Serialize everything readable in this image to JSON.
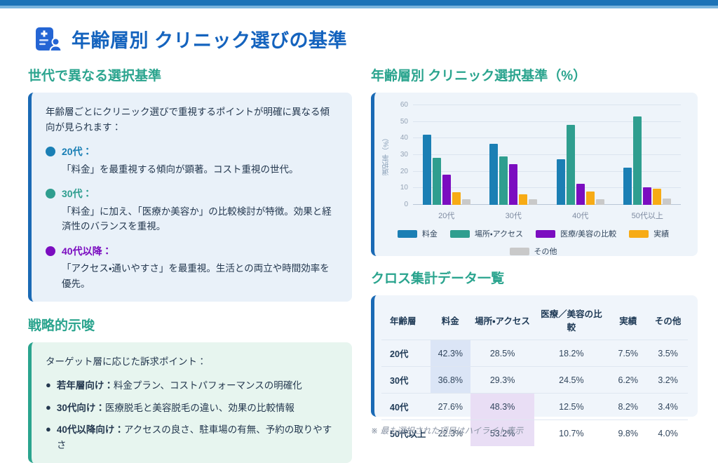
{
  "header": {
    "title": "年齢層別 クリニック選びの基準",
    "icon": "person-card-icon",
    "title_color": "#1463be"
  },
  "accent": {
    "top_bar": "#1c73b7",
    "top_bar_light": "#79b4dd",
    "heading_teal": "#2aa48e"
  },
  "left": {
    "criteria": {
      "heading": "世代で異なる選択基準",
      "intro": "年齢層ごとにクリニック選びで重視するポイントが明確に異なる傾向が見られます：",
      "items": [
        {
          "label": "20代：",
          "color": "#1a7fb5",
          "desc": "「料金」を最重視する傾向が顕著。コスト重視の世代。"
        },
        {
          "label": "30代：",
          "color": "#2f9e8f",
          "desc": "「料金」に加え、「医療か美容か」の比較検討が特徴。効果と経済性のバランスを重視。"
        },
        {
          "label": "40代以降：",
          "color": "#7b0dc0",
          "desc": "「アクセス・通いやすさ」を最重視。生活との両立や時間効率を優先。"
        }
      ]
    },
    "strategy": {
      "heading": "戦略的示唆",
      "intro": "ターゲット層に応じた訴求ポイント：",
      "items": [
        {
          "lead": "若年層向け：",
          "text": "料金プラン、コストパフォーマンスの明確化"
        },
        {
          "lead": "30代向け：",
          "text": "医療脱毛と美容脱毛の違い、効果の比較情報"
        },
        {
          "lead": "40代以降向け：",
          "text": "アクセスの良さ、駐車場の有無、予約の取りやすさ"
        }
      ]
    }
  },
  "right": {
    "chart_heading": "年齢層別 クリニック選択基準（%）",
    "table_heading": "クロス集計データ一覧",
    "footnote": "※ 最も選択された項目はハイライト表示"
  },
  "chart_data": {
    "type": "bar",
    "title": "年齢層別 クリニック選択基準（%）",
    "categories": [
      "20代",
      "30代",
      "40代",
      "50代以上"
    ],
    "series": [
      {
        "name": "料金",
        "color": "#1b7fb4",
        "values": [
          42.3,
          36.8,
          27.6,
          22.3
        ]
      },
      {
        "name": "場所・アクセス",
        "color": "#2f9e8f",
        "values": [
          28.5,
          29.3,
          48.3,
          53.2
        ]
      },
      {
        "name": "医療/美容の比較",
        "color": "#7b0dc0",
        "values": [
          18.2,
          24.5,
          12.5,
          10.7
        ]
      },
      {
        "name": "実績",
        "color": "#f7ab15",
        "values": [
          7.5,
          6.2,
          8.2,
          9.8
        ]
      },
      {
        "name": "その他",
        "color": "#c9c9c9",
        "values": [
          3.5,
          3.2,
          3.4,
          4.0
        ]
      }
    ],
    "xlabel": "",
    "ylabel": "選択率（%）",
    "ylim": [
      0,
      60
    ],
    "yticks": [
      0,
      10,
      20,
      30,
      40,
      50,
      60
    ],
    "grid": true,
    "legend_position": "bottom"
  },
  "table": {
    "headers": [
      "年齢層",
      "料金",
      "場所・アクセス",
      "医療／美容の比較",
      "実績",
      "その他"
    ],
    "rows": [
      {
        "cells": [
          "20代",
          "42.3%",
          "28.5%",
          "18.2%",
          "7.5%",
          "3.5%"
        ],
        "highlight_col": 1,
        "highlight": "blue"
      },
      {
        "cells": [
          "30代",
          "36.8%",
          "29.3%",
          "24.5%",
          "6.2%",
          "3.2%"
        ],
        "highlight_col": 1,
        "highlight": "blue"
      },
      {
        "cells": [
          "40代",
          "27.6%",
          "48.3%",
          "12.5%",
          "8.2%",
          "3.4%"
        ],
        "highlight_col": 2,
        "highlight": "purple"
      },
      {
        "cells": [
          "50代以上",
          "22.3%",
          "53.2%",
          "10.7%",
          "9.8%",
          "4.0%"
        ],
        "highlight_col": 2,
        "highlight": "purple"
      }
    ]
  }
}
